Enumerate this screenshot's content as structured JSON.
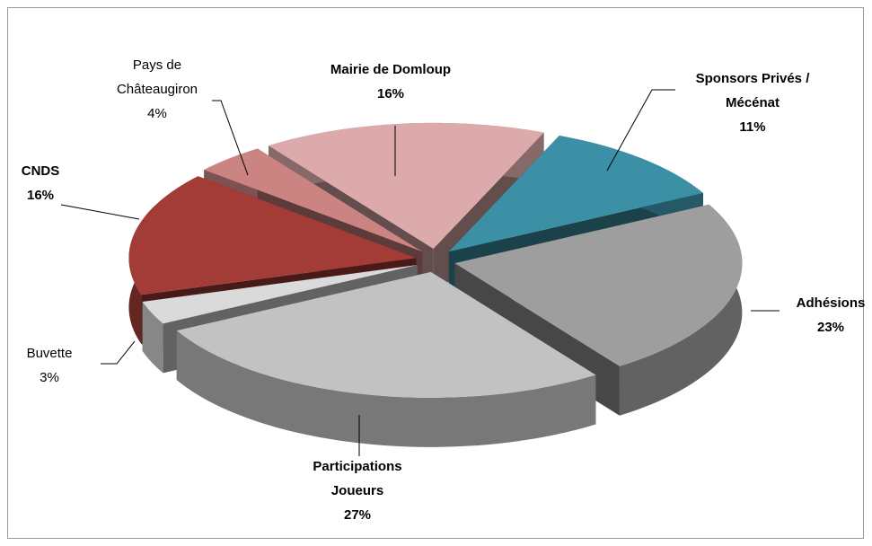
{
  "chart_data": {
    "type": "pie",
    "categories": [
      "Mairie de Domloup",
      "Sponsors Privés /\nMécénat",
      "Adhésions",
      "Participations\nJoueurs",
      "Buvette",
      "CNDS",
      "Pays de\nChâteaugiron"
    ],
    "values": [
      16,
      11,
      23,
      27,
      3,
      16,
      4
    ],
    "value_labels": [
      "16%",
      "11%",
      "23%",
      "27%",
      "3%",
      "16%",
      "4%"
    ],
    "colors": [
      "#dcaaaa",
      "#3b90a6",
      "#9e9e9e",
      "#c2c2c2",
      "#dadada",
      "#a33c36",
      "#cc8482"
    ]
  }
}
